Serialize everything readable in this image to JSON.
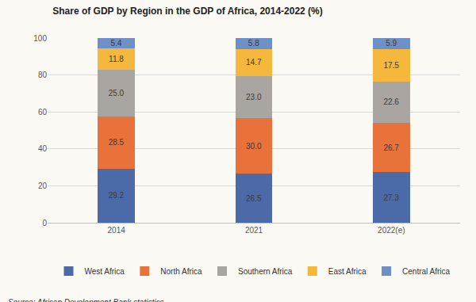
{
  "chart_data": {
    "type": "bar",
    "title": "Share of GDP by Region in the GDP of Africa, 2014-2022 (%)",
    "annotations": [
      "Source: African Development Bank statistics"
    ],
    "categories": [
      "2014",
      "2021",
      "2022(e)"
    ],
    "stacked": true,
    "data_labels": true,
    "legend": "bottom",
    "grid": true,
    "ylim": [
      0,
      100
    ],
    "yticks": [
      0,
      20,
      40,
      60,
      80,
      100
    ],
    "series": [
      {
        "name": "West Africa",
        "color": "#4d6aa8",
        "values": [
          29.2,
          26.5,
          27.3
        ],
        "value_labels": [
          "29.2",
          "26.5",
          "27.3"
        ]
      },
      {
        "name": "North Africa",
        "color": "#e8723a",
        "values": [
          28.5,
          30.0,
          26.7
        ],
        "value_labels": [
          "28.5",
          "30.0",
          "26.7"
        ]
      },
      {
        "name": "Southern Africa",
        "color": "#a9a5a1",
        "values": [
          25.0,
          23.0,
          22.6
        ],
        "value_labels": [
          "25.0",
          "23.0",
          "22.6"
        ]
      },
      {
        "name": "East Africa",
        "color": "#f5b83d",
        "values": [
          11.8,
          14.7,
          17.5
        ],
        "value_labels": [
          "11.8",
          "14.7",
          "17.5"
        ]
      },
      {
        "name": "Central Africa",
        "color": "#6f8fc7",
        "values": [
          5.4,
          5.8,
          5.9
        ],
        "value_labels": [
          "5.4",
          "5.8",
          "5.9"
        ]
      }
    ]
  }
}
